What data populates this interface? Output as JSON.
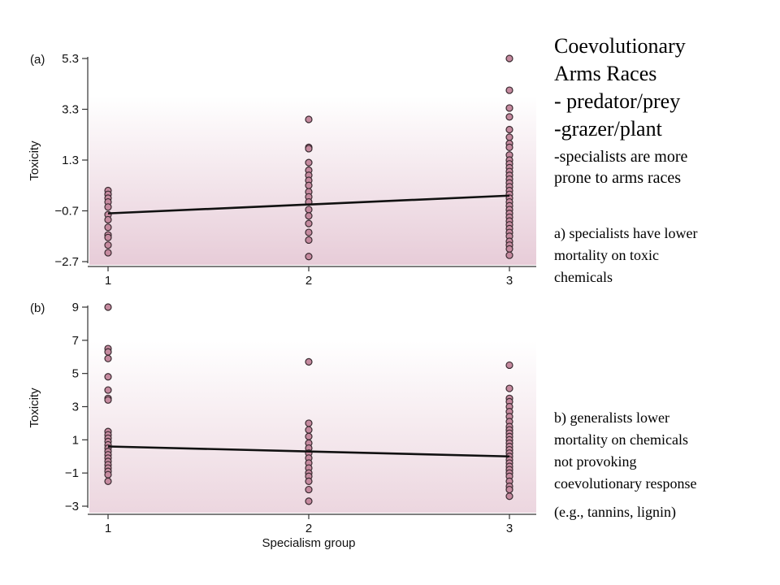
{
  "slide": {
    "title_lines": [
      "Coevolutionary",
      "Arms Races",
      "- predator/prey",
      "-grazer/plant"
    ],
    "sub_lines": [
      "-specialists are more",
      "prone to arms races"
    ],
    "note_a_lines": [
      "a) specialists have lower",
      "mortality on toxic",
      "chemicals"
    ],
    "note_b_lines": [
      "b) generalists lower",
      "mortality on chemicals",
      "not provoking",
      "coevolutionary response"
    ],
    "note_c": "(e.g., tannins, lignin)"
  },
  "chart_data": [
    {
      "type": "scatter",
      "panel_label": "(a)",
      "xlabel": "",
      "ylabel": "Toxicity",
      "x_ticks": [
        "1",
        "2",
        "3"
      ],
      "y_ticks": [
        "5.3",
        "3.3",
        "1.3",
        "−0.7",
        "−2.7"
      ],
      "y_tick_values": [
        5.3,
        3.3,
        1.3,
        -0.7,
        -2.7
      ],
      "ylim": [
        -2.7,
        5.3
      ],
      "xlim": [
        1,
        3
      ],
      "point_color": "#c58a9f",
      "fit_line": [
        [
          1,
          -0.8
        ],
        [
          3,
          -0.1
        ]
      ],
      "points": {
        "1": [
          0.1,
          -0.05,
          -0.2,
          -0.35,
          -0.55,
          -0.85,
          -1.05,
          -1.35,
          -1.65,
          -1.75,
          -2.05,
          -2.35
        ],
        "2": [
          2.9,
          1.8,
          1.75,
          1.2,
          0.9,
          0.7,
          0.5,
          0.3,
          0.05,
          -0.15,
          -0.35,
          -0.65,
          -0.9,
          -1.2,
          -1.55,
          -1.85,
          -2.5
        ],
        "3": [
          5.3,
          4.05,
          3.35,
          3.0,
          2.5,
          2.2,
          1.95,
          1.8,
          1.5,
          1.3,
          1.15,
          1.0,
          0.85,
          0.7,
          0.55,
          0.4,
          0.25,
          0.1,
          -0.05,
          -0.2,
          -0.35,
          -0.5,
          -0.65,
          -0.8,
          -0.95,
          -1.1,
          -1.25,
          -1.4,
          -1.55,
          -1.7,
          -1.9,
          -2.05,
          -2.2,
          -2.45
        ]
      }
    },
    {
      "type": "scatter",
      "panel_label": "(b)",
      "xlabel": "Specialism group",
      "ylabel": "Toxicity",
      "x_ticks": [
        "1",
        "2",
        "3"
      ],
      "y_ticks": [
        "9",
        "7",
        "5",
        "3",
        "1",
        "−1",
        "−3"
      ],
      "y_tick_values": [
        9,
        7,
        5,
        3,
        1,
        -1,
        -3
      ],
      "ylim": [
        -3,
        9
      ],
      "xlim": [
        1,
        3
      ],
      "point_color": "#c58a9f",
      "fit_line": [
        [
          1,
          0.6
        ],
        [
          3,
          0.0
        ]
      ],
      "points": {
        "1": [
          9.0,
          6.5,
          6.3,
          5.9,
          4.8,
          4.0,
          3.5,
          3.4,
          1.5,
          1.3,
          1.1,
          0.9,
          0.7,
          0.5,
          0.3,
          0.1,
          -0.1,
          -0.3,
          -0.5,
          -0.7,
          -0.9,
          -1.1,
          -1.5
        ],
        "2": [
          5.7,
          2.0,
          1.6,
          1.2,
          0.8,
          0.5,
          0.2,
          -0.1,
          -0.4,
          -0.7,
          -1.0,
          -1.2,
          -1.5,
          -2.0,
          -2.7
        ],
        "3": [
          5.5,
          4.1,
          3.5,
          3.3,
          3.0,
          2.7,
          2.4,
          2.1,
          1.8,
          1.6,
          1.4,
          1.2,
          1.0,
          0.8,
          0.6,
          0.4,
          0.2,
          0.0,
          -0.2,
          -0.4,
          -0.6,
          -0.8,
          -1.0,
          -1.2,
          -1.5,
          -1.8,
          -2.0,
          -2.4
        ]
      }
    }
  ]
}
